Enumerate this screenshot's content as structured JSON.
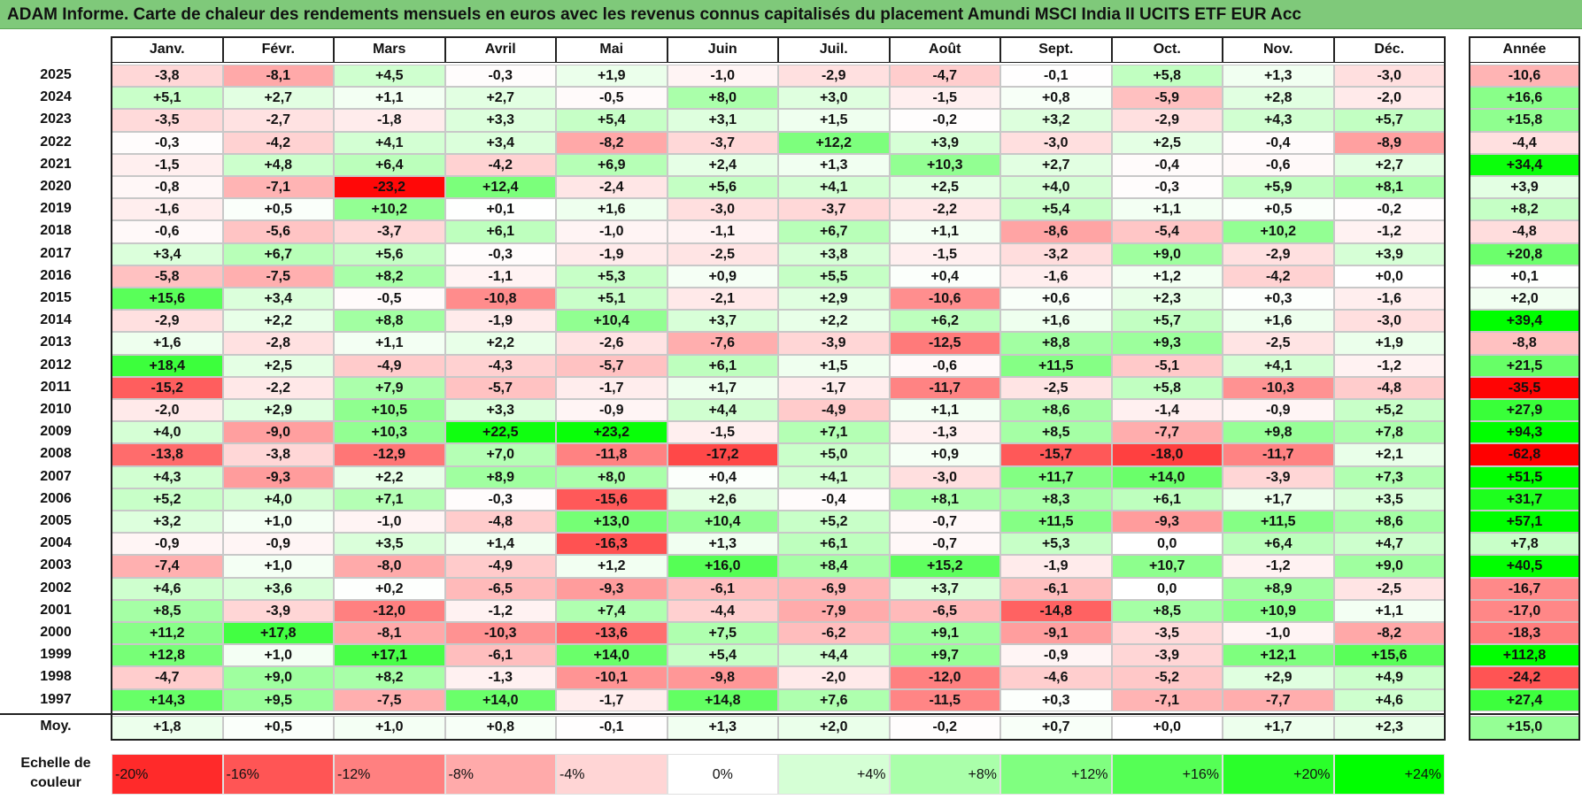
{
  "title": "ADAM Informe. Carte de chaleur des rendements mensuels en euros avec les revenus connus capitalisés du placement Amundi MSCI India II UCITS ETF EUR Acc",
  "chart_data": {
    "type": "heatmap",
    "title": "ADAM Informe. Carte de chaleur des rendements mensuels en euros avec les revenus connus capitalisés du placement Amundi MSCI India II UCITS ETF EUR Acc",
    "months": [
      "Janv.",
      "Févr.",
      "Mars",
      "Avril",
      "Mai",
      "Juin",
      "Juil.",
      "Août",
      "Sept.",
      "Oct.",
      "Nov.",
      "Déc."
    ],
    "annual_label": "Année",
    "rows": [
      {
        "year": "2025",
        "values": [
          "-3,8",
          "-8,1",
          "+4,5",
          "-0,3",
          "+1,9",
          "-1,0",
          "-2,9",
          "-4,7",
          "-0,1",
          "+5,8",
          "+1,3",
          "-3,0"
        ],
        "annual": "-10,6"
      },
      {
        "year": "2024",
        "values": [
          "+5,1",
          "+2,7",
          "+1,1",
          "+2,7",
          "-0,5",
          "+8,0",
          "+3,0",
          "-1,5",
          "+0,8",
          "-5,9",
          "+2,8",
          "-2,0"
        ],
        "annual": "+16,6"
      },
      {
        "year": "2023",
        "values": [
          "-3,5",
          "-2,7",
          "-1,8",
          "+3,3",
          "+5,4",
          "+3,1",
          "+1,5",
          "-0,2",
          "+3,2",
          "-2,9",
          "+4,3",
          "+5,7"
        ],
        "annual": "+15,8"
      },
      {
        "year": "2022",
        "values": [
          "-0,3",
          "-4,2",
          "+4,1",
          "+3,4",
          "-8,2",
          "-3,7",
          "+12,2",
          "+3,9",
          "-3,0",
          "+2,5",
          "-0,4",
          "-8,9"
        ],
        "annual": "-4,4"
      },
      {
        "year": "2021",
        "values": [
          "-1,5",
          "+4,8",
          "+6,4",
          "-4,2",
          "+6,9",
          "+2,4",
          "+1,3",
          "+10,3",
          "+2,7",
          "-0,4",
          "-0,6",
          "+2,7"
        ],
        "annual": "+34,4"
      },
      {
        "year": "2020",
        "values": [
          "-0,8",
          "-7,1",
          "-23,2",
          "+12,4",
          "-2,4",
          "+5,6",
          "+4,1",
          "+2,5",
          "+4,0",
          "-0,3",
          "+5,9",
          "+8,1"
        ],
        "annual": "+3,9"
      },
      {
        "year": "2019",
        "values": [
          "-1,6",
          "+0,5",
          "+10,2",
          "+0,1",
          "+1,6",
          "-3,0",
          "-3,7",
          "-2,2",
          "+5,4",
          "+1,1",
          "+0,5",
          "-0,2"
        ],
        "annual": "+8,2"
      },
      {
        "year": "2018",
        "values": [
          "-0,6",
          "-5,6",
          "-3,7",
          "+6,1",
          "-1,0",
          "-1,1",
          "+6,7",
          "+1,1",
          "-8,6",
          "-5,4",
          "+10,2",
          "-1,2"
        ],
        "annual": "-4,8"
      },
      {
        "year": "2017",
        "values": [
          "+3,4",
          "+6,7",
          "+5,6",
          "-0,3",
          "-1,9",
          "-2,5",
          "+3,8",
          "-1,5",
          "-3,2",
          "+9,0",
          "-2,9",
          "+3,9"
        ],
        "annual": "+20,8"
      },
      {
        "year": "2016",
        "values": [
          "-5,8",
          "-7,5",
          "+8,2",
          "-1,1",
          "+5,3",
          "+0,9",
          "+5,5",
          "+0,4",
          "-1,6",
          "+1,2",
          "-4,2",
          "+0,0"
        ],
        "annual": "+0,1"
      },
      {
        "year": "2015",
        "values": [
          "+15,6",
          "+3,4",
          "-0,5",
          "-10,8",
          "+5,1",
          "-2,1",
          "+2,9",
          "-10,6",
          "+0,6",
          "+2,3",
          "+0,3",
          "-1,6"
        ],
        "annual": "+2,0"
      },
      {
        "year": "2014",
        "values": [
          "-2,9",
          "+2,2",
          "+8,8",
          "-1,9",
          "+10,4",
          "+3,7",
          "+2,2",
          "+6,2",
          "+1,6",
          "+5,7",
          "+1,6",
          "-3,0"
        ],
        "annual": "+39,4"
      },
      {
        "year": "2013",
        "values": [
          "+1,6",
          "-2,8",
          "+1,1",
          "+2,2",
          "-2,6",
          "-7,6",
          "-3,9",
          "-12,5",
          "+8,8",
          "+9,3",
          "-2,5",
          "+1,9"
        ],
        "annual": "-8,8"
      },
      {
        "year": "2012",
        "values": [
          "+18,4",
          "+2,5",
          "-4,9",
          "-4,3",
          "-5,7",
          "+6,1",
          "+1,5",
          "-0,6",
          "+11,5",
          "-5,1",
          "+4,1",
          "-1,2"
        ],
        "annual": "+21,5"
      },
      {
        "year": "2011",
        "values": [
          "-15,2",
          "-2,2",
          "+7,9",
          "-5,7",
          "-1,7",
          "+1,7",
          "-1,7",
          "-11,7",
          "-2,5",
          "+5,8",
          "-10,3",
          "-4,8"
        ],
        "annual": "-35,5"
      },
      {
        "year": "2010",
        "values": [
          "-2,0",
          "+2,9",
          "+10,5",
          "+3,3",
          "-0,9",
          "+4,4",
          "-4,9",
          "+1,1",
          "+8,6",
          "-1,4",
          "-0,9",
          "+5,2"
        ],
        "annual": "+27,9"
      },
      {
        "year": "2009",
        "values": [
          "+4,0",
          "-9,0",
          "+10,3",
          "+22,5",
          "+23,2",
          "-1,5",
          "+7,1",
          "-1,3",
          "+8,5",
          "-7,7",
          "+9,8",
          "+7,8"
        ],
        "annual": "+94,3"
      },
      {
        "year": "2008",
        "values": [
          "-13,8",
          "-3,8",
          "-12,9",
          "+7,0",
          "-11,8",
          "-17,2",
          "+5,0",
          "+0,9",
          "-15,7",
          "-18,0",
          "-11,7",
          "+2,1"
        ],
        "annual": "-62,8"
      },
      {
        "year": "2007",
        "values": [
          "+4,3",
          "-9,3",
          "+2,2",
          "+8,9",
          "+8,0",
          "+0,4",
          "+4,1",
          "-3,0",
          "+11,7",
          "+14,0",
          "-3,9",
          "+7,3"
        ],
        "annual": "+51,5"
      },
      {
        "year": "2006",
        "values": [
          "+5,2",
          "+4,0",
          "+7,1",
          "-0,3",
          "-15,6",
          "+2,6",
          "-0,4",
          "+8,1",
          "+8,3",
          "+6,1",
          "+1,7",
          "+3,5"
        ],
        "annual": "+31,7"
      },
      {
        "year": "2005",
        "values": [
          "+3,2",
          "+1,0",
          "-1,0",
          "-4,8",
          "+13,0",
          "+10,4",
          "+5,2",
          "-0,7",
          "+11,5",
          "-9,3",
          "+11,5",
          "+8,6"
        ],
        "annual": "+57,1"
      },
      {
        "year": "2004",
        "values": [
          "-0,9",
          "-0,9",
          "+3,5",
          "+1,4",
          "-16,3",
          "+1,3",
          "+6,1",
          "-0,7",
          "+5,3",
          "0,0",
          "+6,4",
          "+4,7"
        ],
        "annual": "+7,8"
      },
      {
        "year": "2003",
        "values": [
          "-7,4",
          "+1,0",
          "-8,0",
          "-4,9",
          "+1,2",
          "+16,0",
          "+8,4",
          "+15,2",
          "-1,9",
          "+10,7",
          "-1,2",
          "+9,0"
        ],
        "annual": "+40,5"
      },
      {
        "year": "2002",
        "values": [
          "+4,6",
          "+3,6",
          "+0,2",
          "-6,5",
          "-9,3",
          "-6,1",
          "-6,9",
          "+3,7",
          "-6,1",
          "0,0",
          "+8,9",
          "-2,5"
        ],
        "annual": "-16,7"
      },
      {
        "year": "2001",
        "values": [
          "+8,5",
          "-3,9",
          "-12,0",
          "-1,2",
          "+7,4",
          "-4,4",
          "-7,9",
          "-6,5",
          "-14,8",
          "+8,5",
          "+10,9",
          "+1,1"
        ],
        "annual": "-17,0"
      },
      {
        "year": "2000",
        "values": [
          "+11,2",
          "+17,8",
          "-8,1",
          "-10,3",
          "-13,6",
          "+7,5",
          "-6,2",
          "+9,1",
          "-9,1",
          "-3,5",
          "-1,0",
          "-8,2"
        ],
        "annual": "-18,3"
      },
      {
        "year": "1999",
        "values": [
          "+12,8",
          "+1,0",
          "+17,1",
          "-6,1",
          "+14,0",
          "+5,4",
          "+4,4",
          "+9,7",
          "-0,9",
          "-3,9",
          "+12,1",
          "+15,6"
        ],
        "annual": "+112,8"
      },
      {
        "year": "1998",
        "values": [
          "-4,7",
          "+9,0",
          "+8,2",
          "-1,3",
          "-10,1",
          "-9,8",
          "-2,0",
          "-12,0",
          "-4,6",
          "-5,2",
          "+2,9",
          "+4,9"
        ],
        "annual": "-24,2"
      },
      {
        "year": "1997",
        "values": [
          "+14,3",
          "+9,5",
          "-7,5",
          "+14,0",
          "-1,7",
          "+14,8",
          "+7,6",
          "-11,5",
          "+0,3",
          "-7,1",
          "-7,7",
          "+4,6"
        ],
        "annual": "+27,4"
      }
    ],
    "average": {
      "label": "Moy.",
      "values": [
        "+1,8",
        "+0,5",
        "+1,0",
        "+0,8",
        "-0,1",
        "+1,3",
        "+2,0",
        "-0,2",
        "+0,7",
        "+0,0",
        "+1,7",
        "+2,3"
      ],
      "annual": "+15,0"
    },
    "scale": {
      "label_line1": "Echelle de",
      "label_line2": "couleur",
      "steps": [
        "-20%",
        "-16%",
        "-12%",
        "-8%",
        "-4%",
        "0%",
        "+4%",
        "+8%",
        "+12%",
        "+16%",
        "+20%",
        "+24%"
      ]
    },
    "colors": {
      "negative_max": "#ff0000",
      "neutral": "#ffffff",
      "positive_max": "#00ff00",
      "title_bg": "#7fc97a"
    }
  }
}
